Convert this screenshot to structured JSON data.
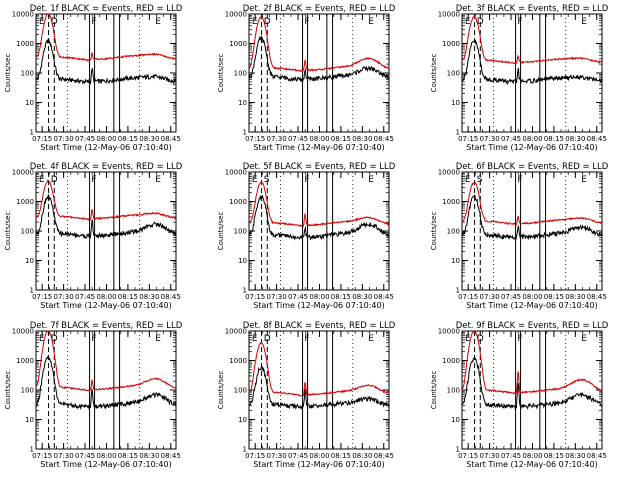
{
  "chart_data": [
    {
      "type": "line",
      "title": "Det. 1f BLACK = Events, RED = LLD",
      "detector": "1f",
      "xlabel": "Start Time (12-May-06 07:10:40)",
      "ylabel": "Counts/sec",
      "yscale": "log",
      "ylim": [
        1,
        10000
      ],
      "yticks": [
        "1",
        "10",
        "100",
        "1000",
        "10000"
      ],
      "xticks": [
        "07:15",
        "07:30",
        "07:45",
        "08:00",
        "08:15",
        "08:30",
        "08:45"
      ],
      "segment_labels": [
        "E",
        "D",
        "F",
        "E"
      ],
      "series": [
        {
          "name": "Events",
          "color": "#000000",
          "baseline": 75,
          "flare_peak": 1200,
          "spike": 180,
          "bump": 90
        },
        {
          "name": "LLD",
          "color": "#d40000",
          "baseline": 420,
          "flare_peak": 10000,
          "spike": 650,
          "bump": 520
        }
      ]
    },
    {
      "type": "line",
      "title": "Det. 2f BLACK = Events, RED = LLD",
      "detector": "2f",
      "xlabel": "Start Time (12-May-06 07:10:40)",
      "ylabel": "Counts/sec",
      "yscale": "log",
      "ylim": [
        1,
        10000
      ],
      "yticks": [
        "1",
        "10",
        "100",
        "1000",
        "10000"
      ],
      "xticks": [
        "07:15",
        "07:30",
        "07:45",
        "08:00",
        "08:15",
        "08:30",
        "08:45"
      ],
      "segment_labels": [
        "E",
        "D",
        "F",
        "E"
      ],
      "series": [
        {
          "name": "Events",
          "color": "#000000",
          "baseline": 90,
          "flare_peak": 1500,
          "spike": 170,
          "bump": 170
        },
        {
          "name": "LLD",
          "color": "#d40000",
          "baseline": 180,
          "flare_peak": 8000,
          "spike": 350,
          "bump": 360
        }
      ]
    },
    {
      "type": "line",
      "title": "Det. 3f BLACK = Events, RED = LLD",
      "detector": "3f",
      "xlabel": "Start Time (12-May-06 07:10:40)",
      "ylabel": "Counts/sec",
      "yscale": "log",
      "ylim": [
        1,
        10000
      ],
      "yticks": [
        "1",
        "10",
        "100",
        "1000",
        "10000"
      ],
      "xticks": [
        "07:15",
        "07:30",
        "07:45",
        "08:00",
        "08:15",
        "08:30",
        "08:45"
      ],
      "segment_labels": [
        "E",
        "D",
        "F",
        "E"
      ],
      "series": [
        {
          "name": "Events",
          "color": "#000000",
          "baseline": 75,
          "flare_peak": 1200,
          "spike": 180,
          "bump": 90
        },
        {
          "name": "LLD",
          "color": "#d40000",
          "baseline": 330,
          "flare_peak": 8000,
          "spike": 500,
          "bump": 380
        }
      ]
    },
    {
      "type": "line",
      "title": "Det. 4f BLACK = Events, RED = LLD",
      "detector": "4f",
      "xlabel": "Start Time (12-May-06 07:10:40)",
      "ylabel": "Counts/sec",
      "yscale": "log",
      "ylim": [
        1,
        10000
      ],
      "yticks": [
        "1",
        "10",
        "100",
        "1000",
        "10000"
      ],
      "xticks": [
        "07:15",
        "07:30",
        "07:45",
        "08:00",
        "08:15",
        "08:30",
        "08:45"
      ],
      "segment_labels": [
        "E",
        "D",
        "F",
        "E"
      ],
      "series": [
        {
          "name": "Events",
          "color": "#000000",
          "baseline": 100,
          "flare_peak": 1500,
          "spike": 280,
          "bump": 200
        },
        {
          "name": "LLD",
          "color": "#d40000",
          "baseline": 380,
          "flare_peak": 5000,
          "spike": 700,
          "bump": 480
        }
      ]
    },
    {
      "type": "line",
      "title": "Det. 5f BLACK = Events, RED = LLD",
      "detector": "5f",
      "xlabel": "Start Time (12-May-06 07:10:40)",
      "ylabel": "Counts/sec",
      "yscale": "log",
      "ylim": [
        1,
        10000
      ],
      "yticks": [
        "1",
        "10",
        "100",
        "1000",
        "10000"
      ],
      "xticks": [
        "07:15",
        "07:30",
        "07:45",
        "08:00",
        "08:15",
        "08:30",
        "08:45"
      ],
      "segment_labels": [
        "E",
        "S",
        "F",
        "E"
      ],
      "series": [
        {
          "name": "Events",
          "color": "#000000",
          "baseline": 90,
          "flare_peak": 1500,
          "spike": 170,
          "bump": 200
        },
        {
          "name": "LLD",
          "color": "#d40000",
          "baseline": 230,
          "flare_peak": 4500,
          "spike": 500,
          "bump": 340
        }
      ]
    },
    {
      "type": "line",
      "title": "Det. 6f BLACK = Events, RED = LLD",
      "detector": "6f",
      "xlabel": "Start Time (12-May-06 07:10:40)",
      "ylabel": "Counts/sec",
      "yscale": "log",
      "ylim": [
        1,
        10000
      ],
      "yticks": [
        "1",
        "10",
        "100",
        "1000",
        "10000"
      ],
      "xticks": [
        "07:15",
        "07:30",
        "07:45",
        "08:00",
        "08:15",
        "08:30",
        "08:45"
      ],
      "segment_labels": [
        "E",
        "S",
        "F",
        "E"
      ],
      "series": [
        {
          "name": "Events",
          "color": "#000000",
          "baseline": 90,
          "flare_peak": 1500,
          "spike": 190,
          "bump": 160
        },
        {
          "name": "LLD",
          "color": "#d40000",
          "baseline": 260,
          "flare_peak": 4500,
          "spike": 420,
          "bump": 330
        }
      ]
    },
    {
      "type": "line",
      "title": "Det. 7f BLACK = Events, RED = LLD",
      "detector": "7f",
      "xlabel": "Start Time (12-May-06 07:10:40)",
      "ylabel": "Counts/sec",
      "yscale": "log",
      "ylim": [
        1,
        10000
      ],
      "yticks": [
        "1",
        "10",
        "100",
        "1000",
        "10000"
      ],
      "xticks": [
        "07:15",
        "07:30",
        "07:45",
        "08:00",
        "08:15",
        "08:30",
        "08:45"
      ],
      "segment_labels": [
        "E",
        "D",
        "F",
        "E"
      ],
      "series": [
        {
          "name": "Events",
          "color": "#000000",
          "baseline": 40,
          "flare_peak": 1200,
          "spike": 120,
          "bump": 80
        },
        {
          "name": "LLD",
          "color": "#d40000",
          "baseline": 150,
          "flare_peak": 10000,
          "spike": 280,
          "bump": 280
        }
      ]
    },
    {
      "type": "line",
      "title": "Det. 8f BLACK = Events, RED = LLD",
      "detector": "8f",
      "xlabel": "Start Time (12-May-06 07:10:40)",
      "ylabel": "Counts/sec",
      "yscale": "log",
      "ylim": [
        1,
        10000
      ],
      "yticks": [
        "1",
        "10",
        "100",
        "1000",
        "10000"
      ],
      "xticks": [
        "07:15",
        "07:30",
        "07:45",
        "08:00",
        "08:15",
        "08:30",
        "08:45"
      ],
      "segment_labels": [
        "E",
        "D",
        "F",
        "E"
      ],
      "series": [
        {
          "name": "Events",
          "color": "#000000",
          "baseline": 40,
          "flare_peak": 600,
          "spike": 120,
          "bump": 60
        },
        {
          "name": "LLD",
          "color": "#d40000",
          "baseline": 100,
          "flare_peak": 4000,
          "spike": 230,
          "bump": 170
        }
      ]
    },
    {
      "type": "line",
      "title": "Det. 9f BLACK = Events, RED = LLD",
      "detector": "9f",
      "xlabel": "Start Time (12-May-06 07:10:40)",
      "ylabel": "Counts/sec",
      "yscale": "log",
      "ylim": [
        1,
        10000
      ],
      "yticks": [
        "1",
        "10",
        "100",
        "1000",
        "10000"
      ],
      "xticks": [
        "07:15",
        "07:30",
        "07:45",
        "08:00",
        "08:15",
        "08:30",
        "08:45"
      ],
      "segment_labels": [
        "E",
        "D",
        "F",
        "E"
      ],
      "series": [
        {
          "name": "Events",
          "color": "#000000",
          "baseline": 40,
          "flare_peak": 1200,
          "spike": 180,
          "bump": 80
        },
        {
          "name": "LLD",
          "color": "#d40000",
          "baseline": 120,
          "flare_peak": 10000,
          "spike": 500,
          "bump": 260
        }
      ]
    }
  ]
}
